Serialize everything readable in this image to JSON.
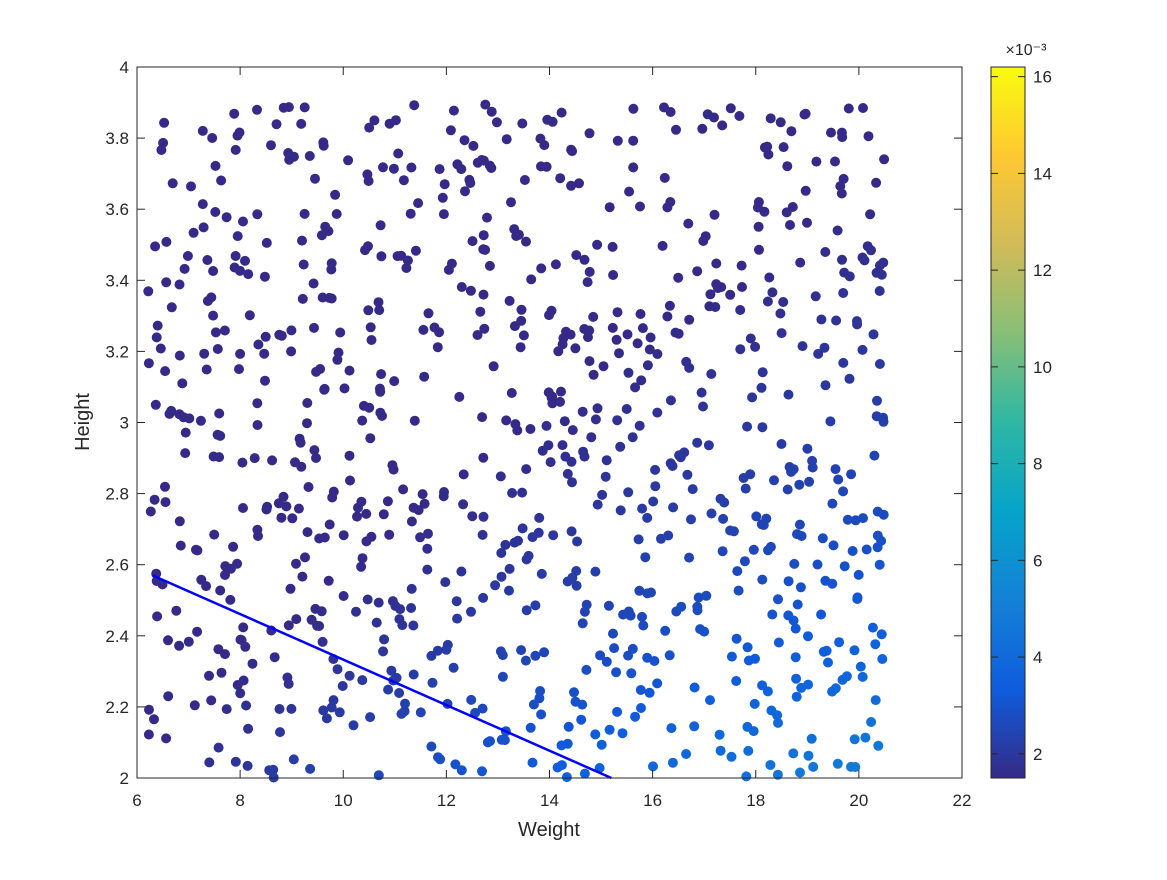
{
  "figure": {
    "background": "#ffffff"
  },
  "chart_data": {
    "type": "scatter",
    "xlabel": "Weight",
    "ylabel": "Height",
    "xlim": [
      6,
      22
    ],
    "ylim": [
      2,
      4
    ],
    "xticks": [
      "6",
      "8",
      "10",
      "12",
      "14",
      "16",
      "18",
      "20",
      "22"
    ],
    "yticks": [
      "2",
      "2.2",
      "2.4",
      "2.6",
      "2.8",
      "3",
      "3.2",
      "3.4",
      "3.6",
      "3.8",
      "4"
    ],
    "grid": false,
    "legend": "none",
    "marker": "filled circle",
    "colormap": "parula",
    "color_value_formula": "Weight / Height^2 / 1000 (points colored by value)",
    "point_generation": {
      "count": 900,
      "weight_range": [
        6.2,
        20.5
      ],
      "height_range": [
        2,
        3.9
      ],
      "distribution": "uniform random"
    },
    "line": {
      "color": "#0000ff",
      "points": [
        [
          6.3,
          2.57
        ],
        [
          15.2,
          2.0
        ]
      ]
    },
    "colorbar": {
      "location": "right",
      "range": [
        1.5,
        16.2
      ],
      "ticks": [
        "2",
        "4",
        "6",
        "8",
        "10",
        "12",
        "14",
        "16"
      ],
      "tick_values": [
        2,
        4,
        6,
        8,
        10,
        12,
        14,
        16
      ],
      "exponent_label": "×10⁻³"
    }
  }
}
